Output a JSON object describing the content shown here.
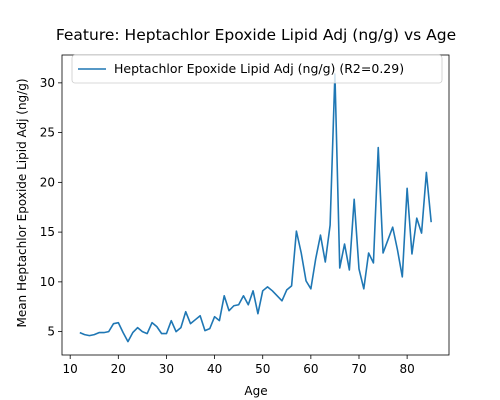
{
  "chart_data": {
    "type": "line",
    "title": "Feature: Heptachlor Epoxide Lipid Adj (ng/g) vs Age",
    "xlabel": "Age",
    "ylabel": "Mean Heptachlor Epoxide Lipid Adj (ng/g)",
    "xlim": [
      8.3,
      88.7
    ],
    "ylim": [
      2.65,
      32.8
    ],
    "xticks": [
      10,
      20,
      30,
      40,
      50,
      60,
      70,
      80
    ],
    "yticks": [
      5,
      10,
      15,
      20,
      25,
      30
    ],
    "grid": false,
    "legend_position": "top-left",
    "series": [
      {
        "name": "Heptachlor Epoxide Lipid Adj (ng/g) (R2=0.29)",
        "color": "#1f77b4",
        "x": [
          12,
          13,
          14,
          15,
          16,
          17,
          18,
          19,
          20,
          21,
          22,
          23,
          24,
          25,
          26,
          27,
          28,
          29,
          30,
          31,
          32,
          33,
          34,
          35,
          36,
          37,
          38,
          39,
          40,
          41,
          42,
          43,
          44,
          45,
          46,
          47,
          48,
          49,
          50,
          51,
          52,
          53,
          54,
          55,
          56,
          57,
          58,
          59,
          60,
          61,
          62,
          63,
          64,
          65,
          66,
          67,
          68,
          69,
          70,
          71,
          72,
          73,
          74,
          75,
          76,
          77,
          78,
          79,
          80,
          81,
          82,
          83,
          84,
          85
        ],
        "y": [
          4.9,
          4.7,
          4.6,
          4.7,
          4.9,
          4.9,
          5.0,
          5.8,
          5.9,
          4.9,
          4.0,
          4.9,
          5.4,
          5.0,
          4.8,
          5.9,
          5.5,
          4.8,
          4.8,
          6.1,
          5.0,
          5.4,
          7.0,
          5.8,
          6.2,
          6.6,
          5.1,
          5.3,
          6.5,
          6.1,
          8.6,
          7.1,
          7.6,
          7.7,
          8.6,
          7.7,
          9.1,
          6.8,
          9.1,
          9.5,
          9.1,
          8.6,
          8.1,
          9.2,
          9.6,
          15.1,
          12.9,
          10.1,
          9.3,
          12.3,
          14.7,
          12.0,
          15.7,
          30.9,
          11.4,
          13.8,
          11.2,
          18.3,
          11.3,
          9.3,
          12.9,
          11.9,
          23.5,
          12.9,
          14.2,
          15.5,
          13.2,
          10.5,
          19.4,
          12.8,
          16.4,
          14.9,
          21.0,
          16.0
        ]
      }
    ]
  }
}
